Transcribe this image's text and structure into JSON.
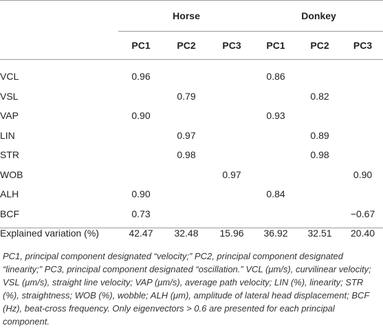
{
  "groups": [
    {
      "label": "Horse"
    },
    {
      "label": "Donkey"
    }
  ],
  "pc_headers": [
    "PC1",
    "PC2",
    "PC3",
    "PC1",
    "PC2",
    "PC3"
  ],
  "rows": [
    {
      "label": "VCL",
      "cells": [
        "0.96",
        "",
        "",
        "0.86",
        "",
        ""
      ]
    },
    {
      "label": "VSL",
      "cells": [
        "",
        "0.79",
        "",
        "",
        "0.82",
        ""
      ]
    },
    {
      "label": "VAP",
      "cells": [
        "0.90",
        "",
        "",
        "0.93",
        "",
        ""
      ]
    },
    {
      "label": "LIN",
      "cells": [
        "",
        "0.97",
        "",
        "",
        "0.89",
        ""
      ]
    },
    {
      "label": "STR",
      "cells": [
        "",
        "0.98",
        "",
        "",
        "0.98",
        ""
      ]
    },
    {
      "label": "WOB",
      "cells": [
        "",
        "",
        "0.97",
        "",
        "",
        "0.90"
      ]
    },
    {
      "label": "ALH",
      "cells": [
        "0.90",
        "",
        "",
        "0.84",
        "",
        ""
      ]
    },
    {
      "label": "BCF",
      "cells": [
        "0.73",
        "",
        "",
        "",
        "",
        "−0.67"
      ]
    },
    {
      "label": "Explained variation (%)",
      "cells": [
        "42.47",
        "32.48",
        "15.96",
        "36.92",
        "32.51",
        "20.40"
      ]
    }
  ],
  "footnote": "PC1, principal component designated “velocity;” PC2, principal component designated “linearity;” PC3, principal component designated “oscillation.” VCL (μm/s), curvilinear velocity; VSL (μm/s), straight line velocity; VAP (μm/s), average path velocity; LIN (%), linearity; STR (%), straightness; WOB (%), wobble; ALH (μm), amplitude of lateral head displacement; BCF (Hz), beat-cross frequency. Only eigenvectors > 0.6 are presented for each principal component."
}
